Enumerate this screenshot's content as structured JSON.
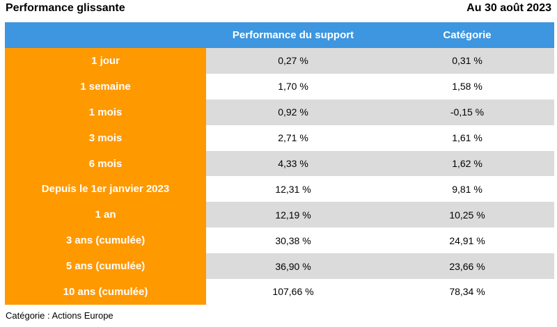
{
  "header": {
    "title": "Performance glissante",
    "date": "Au 30 août 2023"
  },
  "table": {
    "columns": [
      "",
      "Performance du support",
      "Catégorie"
    ],
    "rows": [
      {
        "period": "1 jour",
        "support": "0,27 %",
        "categorie": "0,31 %"
      },
      {
        "period": "1 semaine",
        "support": "1,70 %",
        "categorie": "1,58 %"
      },
      {
        "period": "1 mois",
        "support": "0,92 %",
        "categorie": "-0,15 %"
      },
      {
        "period": "3 mois",
        "support": "2,71 %",
        "categorie": "1,61 %"
      },
      {
        "period": "6 mois",
        "support": "4,33 %",
        "categorie": "1,62 %"
      },
      {
        "period": "Depuis le 1er janvier 2023",
        "support": "12,31 %",
        "categorie": "9,81 %"
      },
      {
        "period": "1 an",
        "support": "12,19 %",
        "categorie": "10,25 %"
      },
      {
        "period": "3 ans (cumulée)",
        "support": "30,38 %",
        "categorie": "24,91 %"
      },
      {
        "period": "5 ans (cumulée)",
        "support": "36,90 %",
        "categorie": "23,66 %"
      },
      {
        "period": "10 ans (cumulée)",
        "support": "107,66 %",
        "categorie": "78,34 %"
      }
    ]
  },
  "footnote": "Catégorie : Actions Europe",
  "colors": {
    "header_bg": "#3d96df",
    "label_bg": "#ff9900",
    "stripe_bg": "#dbdbdb"
  }
}
